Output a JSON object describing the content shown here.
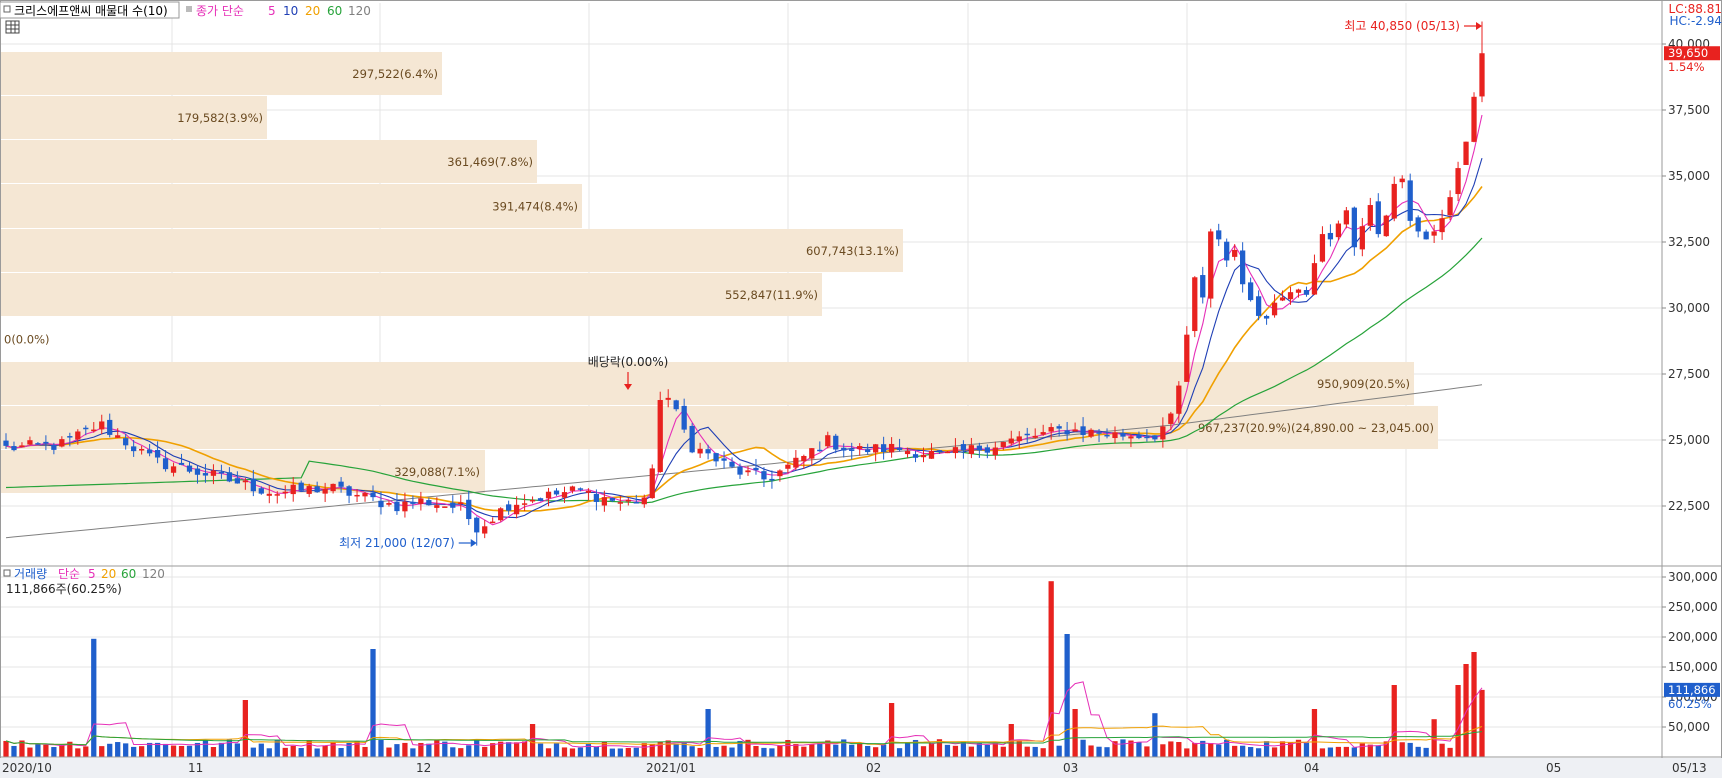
{
  "header": {
    "stock_name": "크리스에프앤씨 매물대 수(10)",
    "price_legend": {
      "prefix": "종가 단순",
      "ma_labels": [
        "5",
        "10",
        "20",
        "60",
        "120"
      ]
    },
    "lc_label": "LC:88.81",
    "hc_label": "HC:-2.94"
  },
  "volume_header": {
    "title": "거래량",
    "prefix": "단순",
    "ma_labels": [
      "5",
      "20",
      "60",
      "120"
    ],
    "last_volume": "111,866주(60.25%)"
  },
  "colors": {
    "up": "#e8221f",
    "down": "#1f5fcc",
    "profile": "#f5e7d4",
    "ma5": "#e630b8",
    "ma10": "#1f3fb5",
    "ma20": "#f0a000",
    "ma60": "#27a33a",
    "ma120": "#808080"
  },
  "price_axis": {
    "ticks": [
      22500,
      25000,
      27500,
      30000,
      32500,
      35000,
      37500,
      40000
    ],
    "tick_labels": [
      "22,500",
      "25,000",
      "27,500",
      "30,000",
      "32,500",
      "35,000",
      "37,500",
      "40,000"
    ],
    "current_price_label": "39,650",
    "current_change_label": "1.54%"
  },
  "volume_axis": {
    "ticks": [
      50000,
      100000,
      150000,
      200000,
      250000,
      300000
    ],
    "tick_labels": [
      "50,000",
      "100,000",
      "150,000",
      "200,000",
      "250,000",
      "300,000"
    ],
    "current_volume_label": "111,866",
    "current_ratio_label": "60.25%"
  },
  "x_axis": {
    "labels": [
      "2020/10",
      "11",
      "12",
      "2021/01",
      "02",
      "03",
      "04",
      "05",
      "05/13"
    ]
  },
  "annotations": {
    "high": "최고 40,850 (05/13)",
    "low": "최저 21,000 (12/07)",
    "dividend": "배당락(0.00%)"
  },
  "chart_data": {
    "type": "candlestick",
    "dates": [
      "2020/10",
      "11",
      "12",
      "2021/01",
      "02",
      "03",
      "04",
      "05",
      "05/13"
    ],
    "price_range": [
      20800,
      41500
    ],
    "high": 40850,
    "low": 21000,
    "last_close": 39650,
    "volume_profile": [
      {
        "label": "297,522(6.4%)"
      },
      {
        "label": "179,582(3.9%)"
      },
      {
        "label": "361,469(7.8%)"
      },
      {
        "label": "391,474(8.4%)"
      },
      {
        "label": "607,743(13.1%)"
      },
      {
        "label": "552,847(11.9%)"
      },
      {
        "label": "0(0.0%)"
      },
      {
        "label": "950,909(20.5%)"
      },
      {
        "label": "967,237(20.9%)(24,890.00 ~ 23,045.00)"
      },
      {
        "label": "329,088(7.1%)"
      }
    ]
  }
}
